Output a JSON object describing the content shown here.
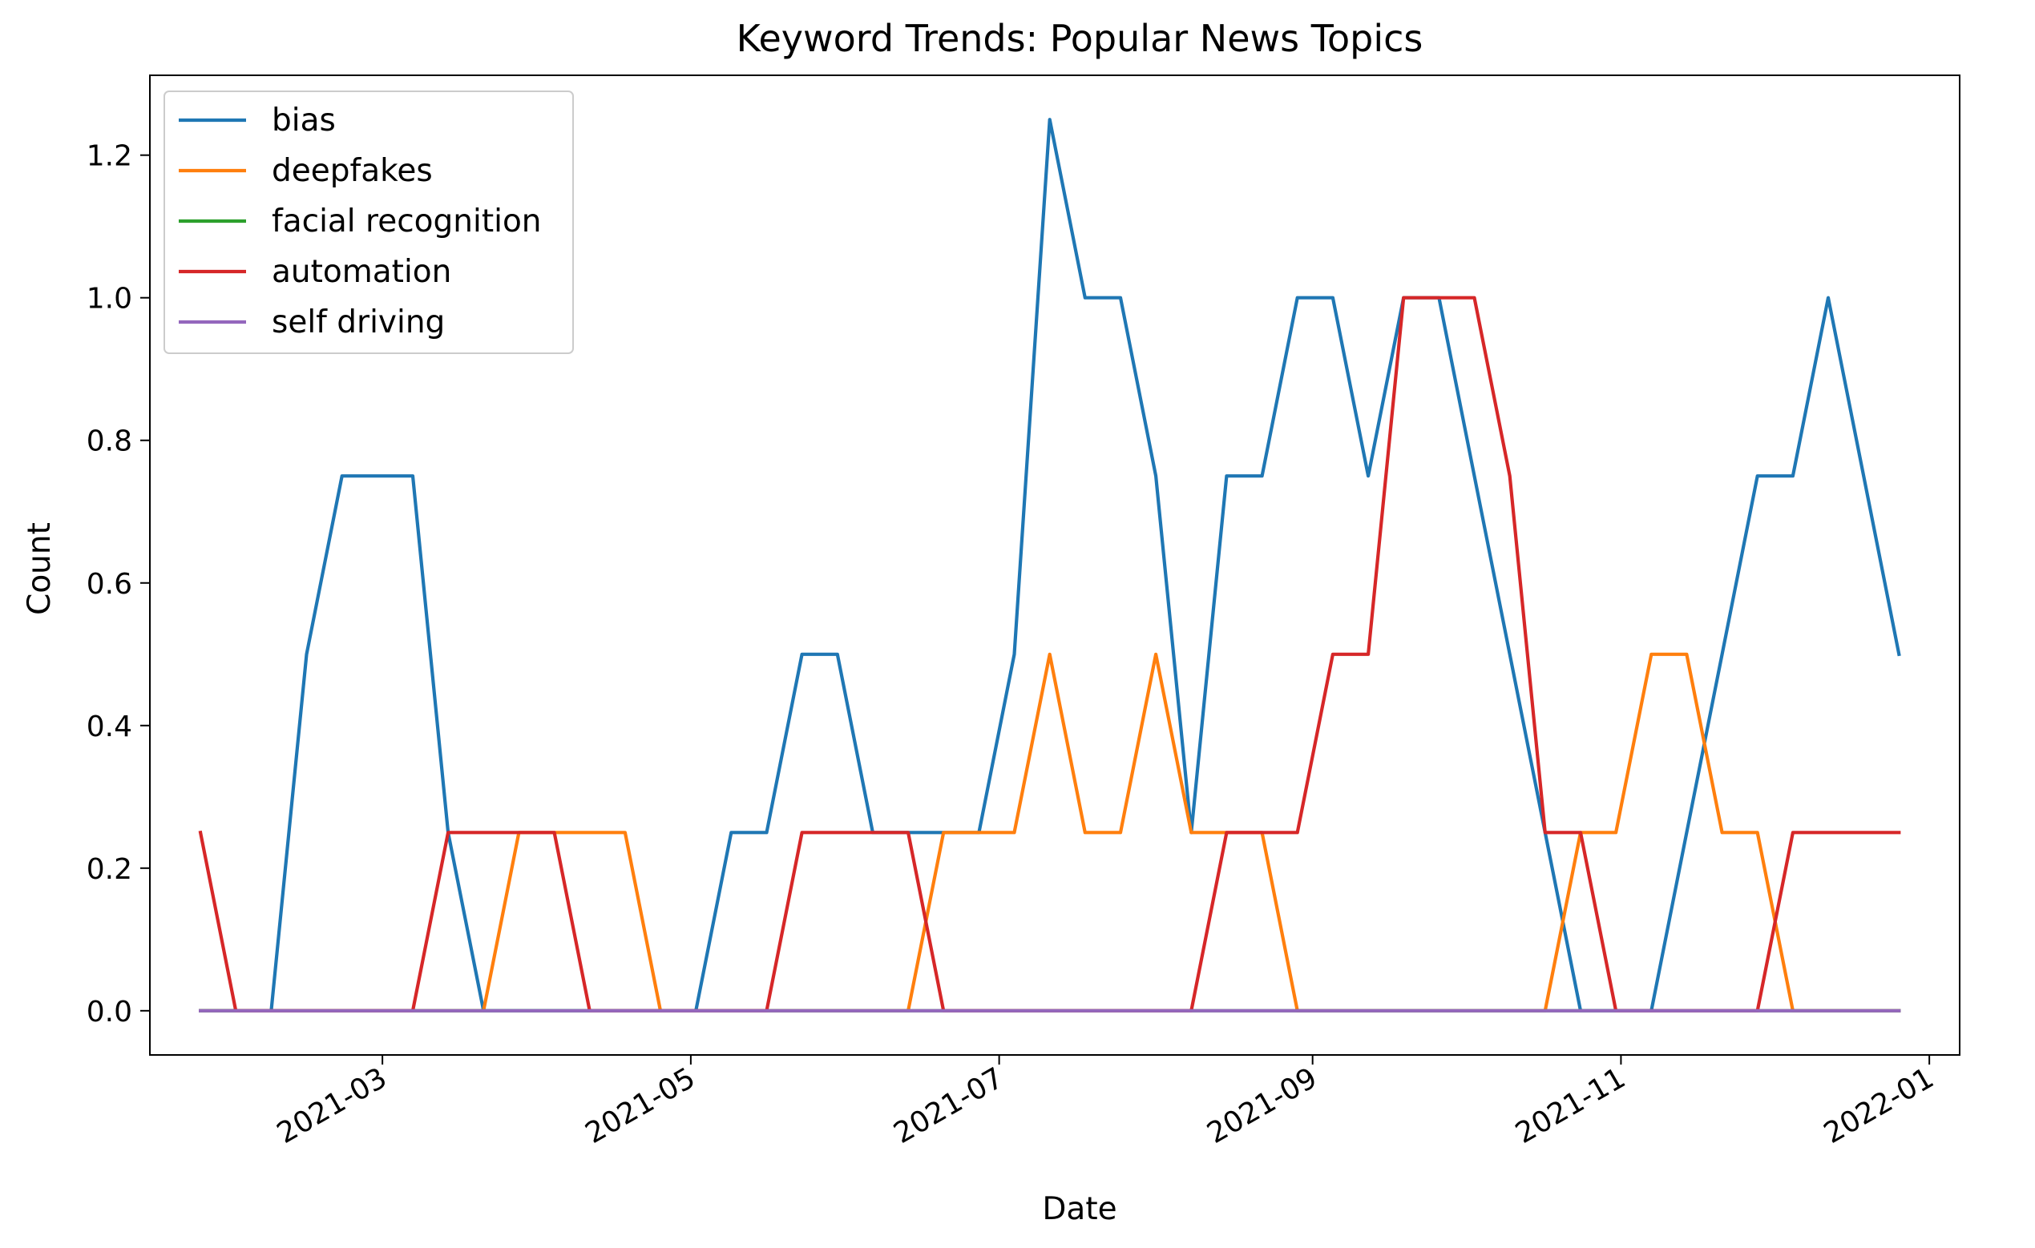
{
  "chart_data": {
    "type": "line",
    "title": "Keyword Trends: Popular News Topics",
    "xlabel": "Date",
    "ylabel": "Count",
    "x_ticks": [
      "2021-03",
      "2021-05",
      "2021-07",
      "2021-09",
      "2021-11",
      "2022-01"
    ],
    "y_ticks": [
      "0.0",
      "0.2",
      "0.4",
      "0.6",
      "0.8",
      "1.0",
      "1.2"
    ],
    "ylim": [
      -0.062,
      1.312
    ],
    "xlim": [
      "2021-01-14",
      "2022-01-07"
    ],
    "legend_position": "top-left",
    "grid": false,
    "x": [
      "2021-01-24",
      "2021-01-31",
      "2021-02-07",
      "2021-02-14",
      "2021-02-21",
      "2021-02-28",
      "2021-03-07",
      "2021-03-14",
      "2021-03-21",
      "2021-03-28",
      "2021-04-04",
      "2021-04-11",
      "2021-04-18",
      "2021-04-25",
      "2021-05-02",
      "2021-05-09",
      "2021-05-16",
      "2021-05-23",
      "2021-05-30",
      "2021-06-06",
      "2021-06-13",
      "2021-06-20",
      "2021-06-27",
      "2021-07-04",
      "2021-07-11",
      "2021-07-18",
      "2021-07-25",
      "2021-08-01",
      "2021-08-08",
      "2021-08-15",
      "2021-08-22",
      "2021-08-29",
      "2021-09-05",
      "2021-09-12",
      "2021-09-19",
      "2021-09-26",
      "2021-10-03",
      "2021-10-10",
      "2021-10-17",
      "2021-10-24",
      "2021-10-31",
      "2021-11-07",
      "2021-11-14",
      "2021-11-21",
      "2021-11-28",
      "2021-12-05",
      "2021-12-12",
      "2021-12-19",
      "2021-12-26"
    ],
    "series": [
      {
        "name": "bias",
        "color": "#1f77b4",
        "values": [
          0,
          0,
          0,
          0.5,
          0.75,
          0.75,
          0.75,
          0.25,
          0,
          0,
          0,
          0,
          0,
          0,
          0,
          0.25,
          0.25,
          0.5,
          0.5,
          0.25,
          0.25,
          0.25,
          0.25,
          0.5,
          1.25,
          1.0,
          1.0,
          0.75,
          0.25,
          0.75,
          0.75,
          1.0,
          1.0,
          0.75,
          1.0,
          1.0,
          0.75,
          0.5,
          0.25,
          0,
          0,
          0,
          0.25,
          0.5,
          0.75,
          0.75,
          1.0,
          0.75,
          0.5
        ]
      },
      {
        "name": "deepfakes",
        "color": "#ff7f0e",
        "values": [
          0,
          0,
          0,
          0,
          0,
          0,
          0,
          0,
          0,
          0.25,
          0.25,
          0.25,
          0.25,
          0,
          0,
          0,
          0,
          0,
          0,
          0,
          0,
          0.25,
          0.25,
          0.25,
          0.5,
          0.25,
          0.25,
          0.5,
          0.25,
          0.25,
          0.25,
          0,
          0,
          0,
          0,
          0,
          0,
          0,
          0,
          0.25,
          0.25,
          0.5,
          0.5,
          0.25,
          0.25,
          0,
          0,
          0,
          0
        ]
      },
      {
        "name": "facial recognition",
        "color": "#2ca02c",
        "values": [
          0,
          0,
          0,
          0,
          0,
          0,
          0,
          0,
          0,
          0,
          0,
          0,
          0,
          0,
          0,
          0,
          0,
          0,
          0,
          0,
          0,
          0,
          0,
          0,
          0,
          0,
          0,
          0,
          0,
          0,
          0,
          0,
          0,
          0,
          0,
          0,
          0,
          0,
          0,
          0,
          0,
          0,
          0,
          0,
          0,
          0,
          0,
          0,
          0
        ]
      },
      {
        "name": "automation",
        "color": "#d62728",
        "values": [
          0.25,
          0,
          0,
          0,
          0,
          0,
          0,
          0.25,
          0.25,
          0.25,
          0.25,
          0,
          0,
          0,
          0,
          0,
          0,
          0.25,
          0.25,
          0.25,
          0.25,
          0,
          0,
          0,
          0,
          0,
          0,
          0,
          0,
          0.25,
          0.25,
          0.25,
          0.5,
          0.5,
          1.0,
          1.0,
          1.0,
          0.75,
          0.25,
          0.25,
          0,
          0,
          0,
          0,
          0,
          0.25,
          0.25,
          0.25,
          0.25
        ]
      },
      {
        "name": "self driving",
        "color": "#9467bd",
        "values": [
          0,
          0,
          0,
          0,
          0,
          0,
          0,
          0,
          0,
          0,
          0,
          0,
          0,
          0,
          0,
          0,
          0,
          0,
          0,
          0,
          0,
          0,
          0,
          0,
          0,
          0,
          0,
          0,
          0,
          0,
          0,
          0,
          0,
          0,
          0,
          0,
          0,
          0,
          0,
          0,
          0,
          0,
          0,
          0,
          0,
          0,
          0,
          0,
          0
        ]
      }
    ]
  }
}
